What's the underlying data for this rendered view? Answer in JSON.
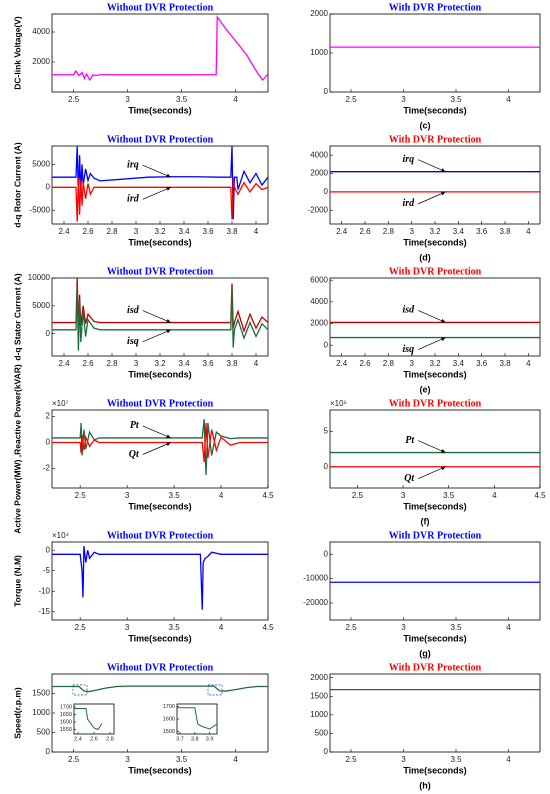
{
  "chart_data": [
    {
      "type": "line",
      "title": "Without DVR Protection",
      "title_color": "#0000ff",
      "xlabel": "Time(seconds)",
      "ylabel": "DC-link Voltage(V)",
      "xlim": [
        2.3,
        4.3
      ],
      "xticks": [
        2.5,
        3,
        3.5,
        4
      ],
      "ylim": [
        0,
        5200
      ],
      "yticks": [
        2000,
        4000
      ],
      "series": [
        {
          "color": "#ff00ff",
          "x": [
            2.3,
            2.5,
            2.52,
            2.55,
            2.58,
            2.6,
            2.62,
            2.65,
            2.68,
            2.7,
            2.75,
            3.82,
            3.83,
            3.9,
            4.0,
            4.1,
            4.2,
            4.25,
            4.3
          ],
          "values": [
            1150,
            1150,
            1400,
            1100,
            1300,
            900,
            1200,
            800,
            1150,
            1100,
            1150,
            1150,
            5000,
            4300,
            3400,
            2500,
            1300,
            800,
            1200
          ]
        }
      ]
    },
    {
      "type": "line",
      "title": "With DVR Protection",
      "title_color": "#0000ff",
      "xlabel": "Time(seconds)",
      "panel_label": "(c)",
      "xlim": [
        2.3,
        4.3
      ],
      "xticks": [
        2.5,
        3,
        3.5,
        4
      ],
      "ylim": [
        0,
        2000
      ],
      "yticks": [
        0,
        1000,
        2000
      ],
      "series": [
        {
          "color": "#ff00ff",
          "x": [
            2.3,
            4.3
          ],
          "values": [
            1150,
            1150
          ]
        }
      ]
    },
    {
      "type": "line",
      "title": "Without DVR Protection",
      "title_color": "#0000ff",
      "xlabel": "Time(seconds)",
      "ylabel": "d-q Rotor Current (A)",
      "xlim": [
        2.3,
        4.1
      ],
      "xticks": [
        2.4,
        2.6,
        2.8,
        3,
        3.2,
        3.4,
        3.6,
        3.8,
        4
      ],
      "ylim": [
        -8000,
        9000
      ],
      "yticks": [
        -5000,
        0,
        5000
      ],
      "series": [
        {
          "name": "irq",
          "color": "#0000ff",
          "x": [
            2.3,
            2.5,
            2.51,
            2.52,
            2.53,
            2.54,
            2.55,
            2.56,
            2.58,
            2.6,
            2.62,
            2.65,
            2.7,
            2.9,
            3.1,
            3.3,
            3.5,
            3.7,
            3.79,
            3.8,
            3.81,
            3.82,
            3.83,
            3.84,
            3.85,
            3.9,
            3.95,
            4.0,
            4.05,
            4.1
          ],
          "values": [
            2200,
            2200,
            9000,
            -2000,
            7000,
            -1000,
            5000,
            500,
            4000,
            1500,
            3000,
            2000,
            1400,
            1800,
            2200,
            2300,
            2300,
            2200,
            2200,
            9000,
            -7000,
            2200,
            2200,
            2200,
            -500,
            3500,
            1000,
            3000,
            500,
            2200
          ]
        },
        {
          "name": "ird",
          "color": "#ff0000",
          "x": [
            2.3,
            2.5,
            2.51,
            2.52,
            2.53,
            2.54,
            2.55,
            2.56,
            2.58,
            2.6,
            2.62,
            2.65,
            2.7,
            3.79,
            3.8,
            3.81,
            3.82,
            3.85,
            3.9,
            3.95,
            4.0,
            4.05,
            4.1
          ],
          "values": [
            0,
            0,
            -7500,
            2000,
            -6000,
            1500,
            -4000,
            1000,
            -2500,
            800,
            -1500,
            0,
            0,
            0,
            -7000,
            2000,
            0,
            -1500,
            1000,
            -1000,
            800,
            -500,
            0
          ]
        }
      ]
    },
    {
      "type": "line",
      "title": "With DVR Protection",
      "title_color": "#ff0000",
      "xlabel": "Time(seconds)",
      "panel_label": "(d)",
      "xlim": [
        2.3,
        4.1
      ],
      "xticks": [
        2.4,
        2.6,
        2.8,
        3,
        3.2,
        3.4,
        3.6,
        3.8,
        4
      ],
      "ylim": [
        -3500,
        5000
      ],
      "yticks": [
        -2000,
        0,
        2000,
        4000
      ],
      "series": [
        {
          "name": "irq",
          "color": "#0000ff",
          "x": [
            2.3,
            4.1
          ],
          "values": [
            2200,
            2200
          ]
        },
        {
          "name": "ird",
          "color": "#ff0000",
          "x": [
            2.3,
            4.1
          ],
          "values": [
            0,
            0
          ]
        }
      ]
    },
    {
      "type": "line",
      "title": "Without DVR Protection",
      "title_color": "#0000ff",
      "xlabel": "Time(seconds)",
      "ylabel": "d-q Stator Current (A)",
      "xlim": [
        2.3,
        4.1
      ],
      "xticks": [
        2.4,
        2.6,
        2.8,
        3,
        3.2,
        3.4,
        3.6,
        3.8,
        4
      ],
      "ylim": [
        -4000,
        10000
      ],
      "yticks": [
        0,
        5000,
        10000
      ],
      "series": [
        {
          "name": "isd",
          "color": "#c00000",
          "x": [
            2.3,
            2.5,
            2.51,
            2.52,
            2.53,
            2.54,
            2.56,
            2.58,
            2.6,
            2.65,
            2.7,
            3.79,
            3.8,
            3.81,
            3.82,
            3.85,
            3.9,
            3.95,
            4.0,
            4.05,
            4.1
          ],
          "values": [
            2000,
            2000,
            10000,
            1000,
            7000,
            1500,
            5000,
            1800,
            3500,
            2200,
            2000,
            2000,
            9000,
            1000,
            2000,
            4000,
            500,
            3500,
            1000,
            3000,
            2000
          ]
        },
        {
          "name": "isq",
          "color": "#1e6b3c",
          "x": [
            2.3,
            2.5,
            2.51,
            2.52,
            2.53,
            2.54,
            2.56,
            2.58,
            2.6,
            2.65,
            2.7,
            3.79,
            3.8,
            3.81,
            3.82,
            3.85,
            3.9,
            3.95,
            4.0,
            4.05,
            4.1
          ],
          "values": [
            700,
            700,
            8500,
            -3000,
            6000,
            -1500,
            4000,
            -500,
            2500,
            1000,
            700,
            700,
            8000,
            -2500,
            700,
            2500,
            -800,
            2000,
            -500,
            1800,
            700
          ]
        }
      ]
    },
    {
      "type": "line",
      "title": "With DVR Protection",
      "title_color": "#ff0000",
      "xlabel": "Time(seconds)",
      "panel_label": "(e)",
      "xlim": [
        2.3,
        4.1
      ],
      "xticks": [
        2.4,
        2.6,
        2.8,
        3,
        3.2,
        3.4,
        3.6,
        3.8,
        4
      ],
      "ylim": [
        -1000,
        6200
      ],
      "yticks": [
        0,
        2000,
        4000,
        6000
      ],
      "series": [
        {
          "name": "isd",
          "color": "#c00000",
          "x": [
            2.3,
            4.1
          ],
          "values": [
            2100,
            2100
          ]
        },
        {
          "name": "isq",
          "color": "#1e6b3c",
          "x": [
            2.3,
            4.1
          ],
          "values": [
            700,
            700
          ]
        }
      ]
    },
    {
      "type": "line",
      "title": "Without DVR Protection",
      "title_color": "#0000ff",
      "xlabel": "Time(seconds)",
      "ylabel": "Active Power(MW) ,Reactive Power(kVAR)",
      "exponent_label": "×10⁷",
      "xlim": [
        2.2,
        4.5
      ],
      "xticks": [
        2.5,
        3,
        3.5,
        4,
        4.5
      ],
      "ylim": [
        -3.5,
        2.5
      ],
      "yticks": [
        -2,
        0,
        2
      ],
      "series": [
        {
          "name": "Pt",
          "color": "#1e6b3c",
          "x": [
            2.2,
            2.5,
            2.51,
            2.52,
            2.54,
            2.56,
            2.6,
            2.65,
            2.7,
            3.8,
            3.82,
            3.84,
            3.86,
            3.9,
            3.95,
            4.0,
            4.1,
            4.2,
            4.5
          ],
          "values": [
            0.35,
            0.35,
            1.5,
            -1,
            1,
            -0.5,
            0.8,
            0.2,
            0.35,
            0.35,
            1.8,
            -2.5,
            1.5,
            -1,
            0.8,
            0.5,
            0.3,
            0.35,
            0.35
          ]
        },
        {
          "name": "Qt",
          "color": "#ff0000",
          "x": [
            2.2,
            2.5,
            2.51,
            2.52,
            2.54,
            2.56,
            2.6,
            2.65,
            2.7,
            3.8,
            3.82,
            3.84,
            3.86,
            3.9,
            3.95,
            4.0,
            4.1,
            4.2,
            4.5
          ],
          "values": [
            0,
            0,
            -0.8,
            0.6,
            -0.6,
            0.4,
            -0.3,
            0.2,
            0,
            0,
            -1.5,
            1.5,
            -1.2,
            1,
            -0.6,
            0.4,
            -0.2,
            0,
            0
          ]
        }
      ]
    },
    {
      "type": "line",
      "title": "With DVR Protection",
      "title_color": "#ff0000",
      "xlabel": "Time(seconds)",
      "exponent_label": "×10⁶",
      "panel_label": "(f)",
      "xlim": [
        2.2,
        4.5
      ],
      "xticks": [
        2.5,
        3,
        3.5,
        4,
        4.5
      ],
      "ylim": [
        -3,
        8
      ],
      "yticks": [
        0,
        5
      ],
      "series": [
        {
          "name": "Pt",
          "color": "#1e6b3c",
          "x": [
            2.2,
            4.5
          ],
          "values": [
            2,
            2
          ]
        },
        {
          "name": "Qt",
          "color": "#ff0000",
          "x": [
            2.2,
            4.5
          ],
          "values": [
            0,
            0
          ]
        }
      ]
    },
    {
      "type": "line",
      "title": "Without DVR Protection",
      "title_color": "#0000ff",
      "xlabel": "Time(seconds)",
      "ylabel": "Torque (N.M)",
      "exponent_label": "×10⁴",
      "xlim": [
        2.2,
        4.5
      ],
      "xticks": [
        2.5,
        3,
        3.5,
        4,
        4.5
      ],
      "ylim": [
        -17,
        2
      ],
      "yticks": [
        -15,
        -10,
        -5,
        0
      ],
      "series": [
        {
          "color": "#0000ff",
          "x": [
            2.2,
            2.5,
            2.52,
            2.53,
            2.54,
            2.56,
            2.58,
            2.6,
            2.65,
            2.7,
            3.78,
            3.8,
            3.81,
            3.83,
            3.86,
            3.9,
            4.0,
            4.1,
            4.5
          ],
          "values": [
            -1,
            -1,
            -5,
            -11.5,
            1,
            -3,
            0,
            -2,
            -0.5,
            -1,
            -1,
            -14.5,
            -3,
            -2,
            -1.5,
            -0.5,
            -1,
            -1,
            -1
          ]
        }
      ]
    },
    {
      "type": "line",
      "title": "With DVR Protection",
      "title_color": "#0000ff",
      "xlabel": "Time(seconds)",
      "panel_label": "(g)",
      "xlim": [
        2.3,
        4.3
      ],
      "xticks": [
        2.5,
        3,
        3.5,
        4
      ],
      "ylim": [
        -27000,
        5000
      ],
      "yticks": [
        -20000,
        -10000,
        0
      ],
      "series": [
        {
          "color": "#0000ff",
          "x": [
            2.3,
            4.3
          ],
          "values": [
            -11500,
            -11500
          ]
        }
      ]
    },
    {
      "type": "line",
      "title": "Without DVR Protection",
      "title_color": "#0000ff",
      "xlabel": "Time(seconds)",
      "ylabel": "Speed(r.p.m)",
      "xlim": [
        2.3,
        4.3
      ],
      "xticks": [
        2.5,
        3,
        3.5,
        4
      ],
      "ylim": [
        0,
        2000
      ],
      "yticks": [
        0,
        500,
        1000,
        1500
      ],
      "series": [
        {
          "color": "#1e6b3c",
          "x": [
            2.3,
            2.55,
            2.58,
            2.6,
            2.65,
            2.7,
            2.8,
            2.9,
            3.0,
            3.8,
            3.85,
            3.9,
            4.0,
            4.1,
            4.2,
            4.3
          ],
          "values": [
            1680,
            1680,
            1600,
            1560,
            1550,
            1580,
            1640,
            1680,
            1690,
            1690,
            1570,
            1560,
            1600,
            1650,
            1680,
            1680
          ]
        }
      ],
      "insets": [
        {
          "xlim": [
            2.35,
            2.85
          ],
          "xticks": [
            2.4,
            2.6,
            2.8
          ],
          "ylim": [
            1520,
            1720
          ],
          "yticks": [
            1550,
            1600,
            1650,
            1700
          ],
          "series": [
            {
              "color": "#1e6b3c",
              "x": [
                2.35,
                2.5,
                2.52,
                2.6,
                2.65,
                2.7
              ],
              "values": [
                1690,
                1690,
                1620,
                1560,
                1550,
                1590
              ]
            }
          ]
        },
        {
          "xlim": [
            3.68,
            3.95
          ],
          "xticks": [
            3.7,
            3.8,
            3.9
          ],
          "ylim": [
            1480,
            1720
          ],
          "yticks": [
            1500,
            1600,
            1700
          ],
          "series": [
            {
              "color": "#1e6b3c",
              "x": [
                3.68,
                3.8,
                3.82,
                3.85,
                3.9,
                3.95
              ],
              "values": [
                1690,
                1690,
                1560,
                1540,
                1520,
                1560
              ]
            }
          ]
        }
      ]
    },
    {
      "type": "line",
      "title": "With DVR Protection",
      "title_color": "#ff0000",
      "xlabel": "Time(seconds)",
      "panel_label": "(h)",
      "xlim": [
        2.3,
        4.3
      ],
      "xticks": [
        2.5,
        3,
        3.5,
        4
      ],
      "ylim": [
        0,
        2100
      ],
      "yticks": [
        0,
        500,
        1000,
        1500,
        2000
      ],
      "series": [
        {
          "color": "#1e6b3c",
          "x": [
            2.3,
            4.3
          ],
          "values": [
            1680,
            1680
          ]
        }
      ]
    }
  ]
}
